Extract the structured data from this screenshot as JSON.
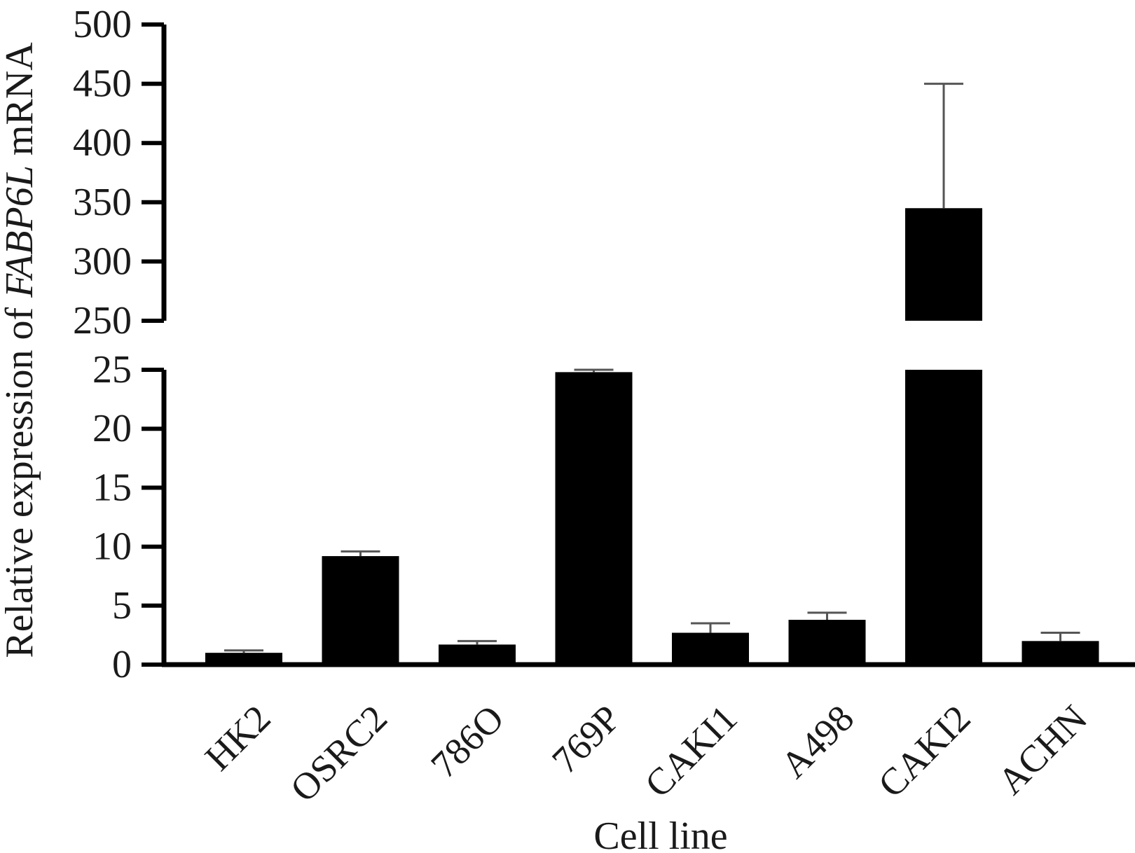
{
  "chart_data": {
    "type": "bar",
    "xlabel": "Cell line",
    "ylabel_parts": [
      {
        "text": "Relative expression of ",
        "italic": false
      },
      {
        "text": "FABP6L",
        "italic": true
      },
      {
        "text": " mRNA",
        "italic": false
      }
    ],
    "categories": [
      "HK2",
      "OSRC2",
      "786O",
      "769P",
      "CAKI1",
      "A498",
      "CAKI2",
      "ACHN"
    ],
    "values": [
      1,
      9.2,
      1.7,
      24.8,
      2.7,
      3.8,
      345,
      2.0
    ],
    "error_upper": [
      1.2,
      9.6,
      2.0,
      25.0,
      3.5,
      4.4,
      450,
      2.7
    ],
    "axis_break": {
      "lower_range": [
        0,
        25
      ],
      "upper_range": [
        250,
        500
      ]
    },
    "yticks_lower": [
      0,
      5,
      10,
      15,
      20,
      25
    ],
    "yticks_upper": [
      250,
      300,
      350,
      400,
      450,
      500
    ],
    "bar_color": "#000000",
    "error_color": "#555555",
    "grid": false,
    "legend": "none"
  }
}
